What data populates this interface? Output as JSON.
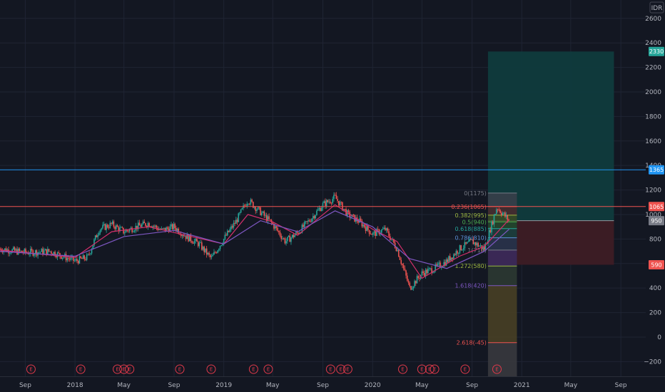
{
  "currency": "IDR",
  "colors": {
    "background": "#131722",
    "grid": "#1f2433",
    "up": "#26a69a",
    "down": "#ef5350",
    "ma_fast": "#d32f6b",
    "ma_slow": "#7e57c2",
    "horizontal_line": "#2196f3",
    "target_zone": "#0f3b3d",
    "stop_zone": "#3d1c25"
  },
  "chart_data": {
    "type": "candlestick",
    "title": "",
    "xlabel": "",
    "ylabel": "",
    "ylim": [
      -320,
      2750
    ],
    "x_range": [
      "2017-07",
      "2021-11"
    ],
    "x_ticks": [
      {
        "label": "Sep",
        "date": "2017-09"
      },
      {
        "label": "2018",
        "date": "2018-01"
      },
      {
        "label": "May",
        "date": "2018-05"
      },
      {
        "label": "Sep",
        "date": "2018-09"
      },
      {
        "label": "2019",
        "date": "2019-01"
      },
      {
        "label": "May",
        "date": "2019-05"
      },
      {
        "label": "Sep",
        "date": "2019-09"
      },
      {
        "label": "2020",
        "date": "2020-01"
      },
      {
        "label": "May",
        "date": "2020-05"
      },
      {
        "label": "Sep",
        "date": "2020-09"
      },
      {
        "label": "2021",
        "date": "2021-01"
      },
      {
        "label": "May",
        "date": "2021-05"
      },
      {
        "label": "Sep",
        "date": "2021-09"
      }
    ],
    "y_ticks": [
      -200,
      0,
      200,
      400,
      600,
      800,
      1000,
      1200,
      1400,
      1600,
      1800,
      2000,
      2200,
      2400,
      2600
    ],
    "price_path": [
      [
        "2017-07",
        720
      ],
      [
        "2017-09",
        690
      ],
      [
        "2017-11",
        700
      ],
      [
        "2018-01",
        620
      ],
      [
        "2018-02",
        650
      ],
      [
        "2018-03",
        880
      ],
      [
        "2018-04",
        920
      ],
      [
        "2018-05",
        860
      ],
      [
        "2018-06",
        900
      ],
      [
        "2018-07",
        930
      ],
      [
        "2018-08",
        870
      ],
      [
        "2018-09",
        900
      ],
      [
        "2018-10",
        820
      ],
      [
        "2018-11",
        760
      ],
      [
        "2018-12",
        640
      ],
      [
        "2019-01",
        800
      ],
      [
        "2019-02",
        950
      ],
      [
        "2019-03",
        1120
      ],
      [
        "2019-04",
        1020
      ],
      [
        "2019-05",
        920
      ],
      [
        "2019-06",
        780
      ],
      [
        "2019-07",
        850
      ],
      [
        "2019-08",
        960
      ],
      [
        "2019-09",
        1080
      ],
      [
        "2019-10",
        1140
      ],
      [
        "2019-11",
        1000
      ],
      [
        "2019-12",
        940
      ],
      [
        "2020-01",
        840
      ],
      [
        "2020-02",
        880
      ],
      [
        "2020-03",
        720
      ],
      [
        "2020-04",
        400
      ],
      [
        "2020-05",
        520
      ],
      [
        "2020-06",
        560
      ],
      [
        "2020-07",
        620
      ],
      [
        "2020-08",
        720
      ],
      [
        "2020-09",
        780
      ],
      [
        "2020-10",
        720
      ],
      [
        "2020-11",
        1060
      ],
      [
        "2020-12",
        950
      ]
    ],
    "moving_averages": [
      {
        "color": "#d32f6b",
        "values": [
          [
            "2017-07",
            710
          ],
          [
            "2018-01",
            650
          ],
          [
            "2018-04",
            860
          ],
          [
            "2018-07",
            900
          ],
          [
            "2018-10",
            830
          ],
          [
            "2019-01",
            760
          ],
          [
            "2019-03",
            1000
          ],
          [
            "2019-05",
            940
          ],
          [
            "2019-07",
            830
          ],
          [
            "2019-10",
            1080
          ],
          [
            "2020-01",
            880
          ],
          [
            "2020-03",
            780
          ],
          [
            "2020-05",
            480
          ],
          [
            "2020-08",
            660
          ],
          [
            "2020-10",
            740
          ],
          [
            "2020-12",
            960
          ]
        ]
      },
      {
        "color": "#7e57c2",
        "values": [
          [
            "2017-07",
            700
          ],
          [
            "2018-01",
            660
          ],
          [
            "2018-05",
            820
          ],
          [
            "2018-09",
            870
          ],
          [
            "2019-01",
            760
          ],
          [
            "2019-04",
            950
          ],
          [
            "2019-07",
            860
          ],
          [
            "2019-10",
            1030
          ],
          [
            "2020-01",
            900
          ],
          [
            "2020-04",
            640
          ],
          [
            "2020-07",
            560
          ],
          [
            "2020-10",
            700
          ],
          [
            "2020-12",
            880
          ]
        ]
      }
    ],
    "horizontal_lines": [
      {
        "value": 1365,
        "color": "#2196f3",
        "label": "1365"
      },
      {
        "value": 1065,
        "color": "#ef5350",
        "label": "1065"
      }
    ],
    "price_badges": [
      {
        "value": 2330,
        "label": "2330",
        "color": "#26a69a"
      },
      {
        "value": 1365,
        "label": "1365",
        "color": "#2196f3"
      },
      {
        "value": 1065,
        "label": "1065",
        "color": "#ef5350"
      },
      {
        "value": 950,
        "label": "950",
        "color": "#787b86"
      },
      {
        "value": 590,
        "label": "590",
        "color": "#ef5350"
      }
    ],
    "fibonacci": {
      "start": "2020-10-10",
      "end": "2020-12-20",
      "levels": [
        {
          "label": "0(1175)",
          "value": 1175,
          "color": "#787b86",
          "fill": "#3a3f4b"
        },
        {
          "label": "0.236(1065)",
          "value": 1065,
          "color": "#ef5350",
          "fill": "#4a2a2e"
        },
        {
          "label": "0.382(995)",
          "value": 995,
          "color": "#9bb640",
          "fill": "#3a4a25"
        },
        {
          "label": "0.5(940)",
          "value": 940,
          "color": "#4caf50",
          "fill": "#1e4a2e"
        },
        {
          "label": "0.618(885)",
          "value": 885,
          "color": "#26a69a",
          "fill": "#17413f"
        },
        {
          "label": "0.786(810)",
          "value": 810,
          "color": "#5b8fd6",
          "fill": "#24344e"
        },
        {
          "label": "1(710)",
          "value": 710,
          "color": "#787b86",
          "fill": "#3b2a5e"
        },
        {
          "label": "1.272(580)",
          "value": 580,
          "color": "#9bb640",
          "fill": "#2e3b33"
        },
        {
          "label": "1.618(420)",
          "value": 420,
          "color": "#7e57c2",
          "fill": "#4b4224"
        },
        {
          "label": "2.618(-45)",
          "value": -45,
          "color": "#ef5350",
          "fill": "#3b3b3f"
        }
      ]
    },
    "position": {
      "start": "2020-10-10",
      "end": "2021-08-15",
      "entry": 950,
      "target": 2330,
      "stop": 590
    },
    "earnings_events": [
      "2017-09-15",
      "2018-01-15",
      "2018-04-15",
      "2018-05-01",
      "2018-05-15",
      "2018-09-15",
      "2018-12-01",
      "2019-03-15",
      "2019-04-20",
      "2019-09-20",
      "2019-10-15",
      "2019-11-01",
      "2020-03-15",
      "2020-05-01",
      "2020-05-20",
      "2020-06-01",
      "2020-08-15",
      "2020-11-01"
    ],
    "earnings_label": "E"
  }
}
